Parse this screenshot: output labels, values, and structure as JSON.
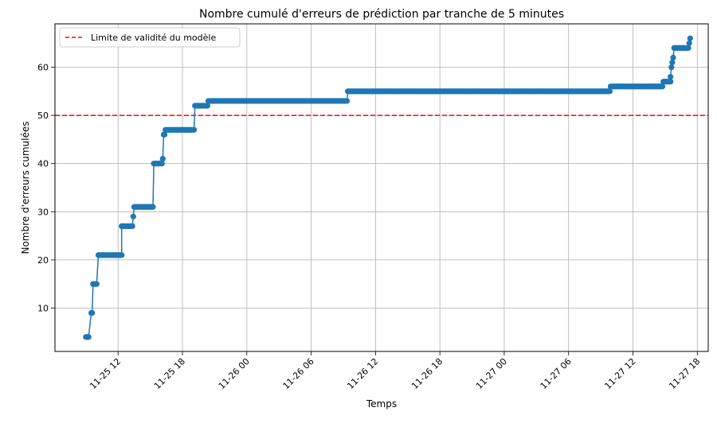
{
  "chart_data": {
    "type": "line",
    "title": "Nombre cumulé d'erreurs de prédiction par tranche de 5 minutes",
    "xlabel": "Temps",
    "ylabel": "Nombre d'erreurs cumulées",
    "ylim": [
      1,
      69
    ],
    "xlim": [
      "2024-11-25 06:07",
      "2024-11-27 19:01"
    ],
    "x_ticks": [
      {
        "label": "11-25 12",
        "at": "2024-11-25 12:00"
      },
      {
        "label": "11-25 18",
        "at": "2024-11-25 18:00"
      },
      {
        "label": "11-26 00",
        "at": "2024-11-26 00:00"
      },
      {
        "label": "11-26 06",
        "at": "2024-11-26 06:00"
      },
      {
        "label": "11-26 12",
        "at": "2024-11-26 12:00"
      },
      {
        "label": "11-26 18",
        "at": "2024-11-26 18:00"
      },
      {
        "label": "11-27 00",
        "at": "2024-11-27 00:00"
      },
      {
        "label": "11-27 06",
        "at": "2024-11-27 06:00"
      },
      {
        "label": "11-27 12",
        "at": "2024-11-27 12:00"
      },
      {
        "label": "11-27 18",
        "at": "2024-11-27 18:00"
      }
    ],
    "y_ticks": [
      10,
      20,
      30,
      40,
      50,
      60
    ],
    "grid": true,
    "legend": {
      "position": "top-left",
      "entries": [
        {
          "label": "Limite de validité du modèle",
          "style": "dashed",
          "color": "#ff0000"
        }
      ]
    },
    "threshold": {
      "value": 50,
      "label": "Limite de validité du modèle",
      "color": "#ff0000"
    },
    "series": [
      {
        "color": "#1f77b4",
        "steps": [
          {
            "from": "2024-11-25 09:00",
            "to": "2024-11-25 09:15",
            "y": 4
          },
          {
            "from": "2024-11-25 09:30",
            "to": "2024-11-25 09:35",
            "y": 9
          },
          {
            "from": "2024-11-25 09:40",
            "to": "2024-11-25 10:00",
            "y": 15
          },
          {
            "from": "2024-11-25 10:10",
            "to": "2024-11-25 12:20",
            "y": 21
          },
          {
            "from": "2024-11-25 12:20",
            "to": "2024-11-25 13:20",
            "y": 27
          },
          {
            "from": "2024-11-25 13:25",
            "to": "2024-11-25 13:25",
            "y": 29
          },
          {
            "from": "2024-11-25 13:30",
            "to": "2024-11-25 15:15",
            "y": 31
          },
          {
            "from": "2024-11-25 15:20",
            "to": "2024-11-25 16:05",
            "y": 40
          },
          {
            "from": "2024-11-25 16:10",
            "to": "2024-11-25 16:10",
            "y": 41
          },
          {
            "from": "2024-11-25 16:15",
            "to": "2024-11-25 16:20",
            "y": 46
          },
          {
            "from": "2024-11-25 16:25",
            "to": "2024-11-25 19:05",
            "y": 47
          },
          {
            "from": "2024-11-25 19:10",
            "to": "2024-11-25 20:20",
            "y": 52
          },
          {
            "from": "2024-11-25 20:25",
            "to": "2024-11-26 09:20",
            "y": 53
          },
          {
            "from": "2024-11-26 09:25",
            "to": "2024-11-27 09:50",
            "y": 55
          },
          {
            "from": "2024-11-27 09:55",
            "to": "2024-11-27 14:45",
            "y": 56
          },
          {
            "from": "2024-11-27 14:50",
            "to": "2024-11-27 15:30",
            "y": 57
          },
          {
            "from": "2024-11-27 15:30",
            "to": "2024-11-27 15:30",
            "y": 58
          },
          {
            "from": "2024-11-27 15:35",
            "to": "2024-11-27 15:35",
            "y": 60
          },
          {
            "from": "2024-11-27 15:40",
            "to": "2024-11-27 15:40",
            "y": 61
          },
          {
            "from": "2024-11-27 15:45",
            "to": "2024-11-27 15:45",
            "y": 62
          },
          {
            "from": "2024-11-27 15:50",
            "to": "2024-11-27 17:10",
            "y": 64
          },
          {
            "from": "2024-11-27 17:15",
            "to": "2024-11-27 17:15",
            "y": 65
          },
          {
            "from": "2024-11-27 17:20",
            "to": "2024-11-27 17:20",
            "y": 66
          }
        ]
      }
    ]
  }
}
